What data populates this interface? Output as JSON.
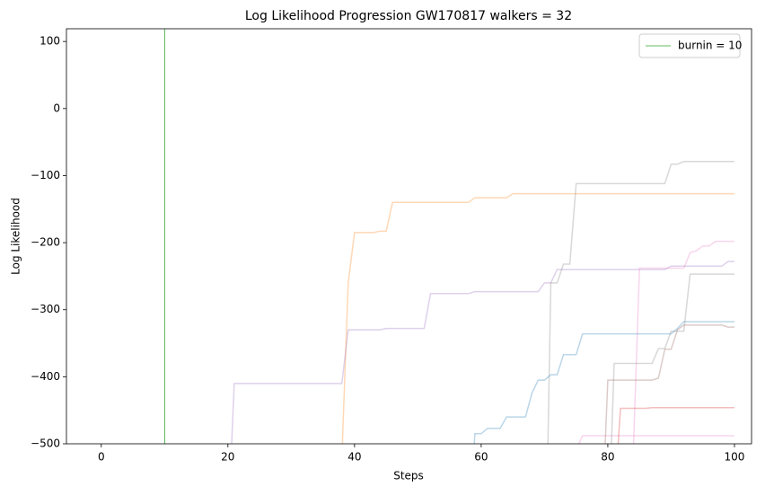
{
  "chart_data": {
    "type": "line",
    "title": "Log Likelihood Progression GW170817 walkers = 32",
    "xlabel": "Steps",
    "ylabel": "Log Likelihood",
    "xlim": [
      -5.5,
      102.7
    ],
    "ylim": [
      -500,
      119
    ],
    "xticks": [
      0,
      20,
      40,
      60,
      80,
      100
    ],
    "yticks": [
      {
        "value": -500,
        "label": "−500"
      },
      {
        "value": -400,
        "label": "−400"
      },
      {
        "value": -300,
        "label": "−300"
      },
      {
        "value": -200,
        "label": "−200"
      },
      {
        "value": -100,
        "label": "−100"
      },
      0,
      100
    ],
    "grid": false,
    "legend": "upper right",
    "alpha": 0.3,
    "vline": {
      "name": "burnin = 10",
      "x": 10,
      "color": "#2ca02c"
    },
    "series": [
      {
        "color": "#ff7f0e",
        "x": [
          38,
          39,
          40,
          43,
          44,
          45,
          46,
          58,
          59,
          64,
          65,
          100
        ],
        "values": [
          -520,
          -260,
          -185,
          -185,
          -183,
          -183,
          -140,
          -140,
          -133,
          -133,
          -127,
          -127
        ]
      },
      {
        "color": "#9467bd",
        "x": [
          20.5,
          21,
          38,
          39,
          44,
          45,
          51,
          52,
          58,
          59,
          69,
          70,
          71,
          72,
          89,
          90,
          98,
          99,
          100
        ],
        "values": [
          -520,
          -410,
          -410,
          -330,
          -330,
          -328,
          -328,
          -276,
          -276,
          -273,
          -273,
          -260,
          -260,
          -240,
          -240,
          -235,
          -235,
          -228,
          -228
        ]
      },
      {
        "color": "#7f7f7f",
        "x": [
          70.5,
          71,
          72,
          73,
          74,
          75,
          89,
          90,
          91,
          92,
          100
        ],
        "values": [
          -520,
          -260,
          -260,
          -232,
          -232,
          -112,
          -112,
          -83,
          -83,
          -79,
          -79
        ]
      },
      {
        "color": "#1f77b4",
        "x": [
          58.8,
          59,
          60,
          61,
          63,
          64,
          67,
          68,
          69,
          70,
          71,
          72,
          73,
          75,
          76,
          90,
          91,
          92,
          100
        ],
        "values": [
          -520,
          -485,
          -485,
          -477,
          -477,
          -460,
          -460,
          -425,
          -405,
          -405,
          -397,
          -397,
          -367,
          -367,
          -336,
          -336,
          -328,
          -318,
          -318
        ]
      },
      {
        "color": "#e377c2",
        "x": [
          84,
          85,
          92,
          93,
          94,
          95,
          96,
          97,
          100
        ],
        "values": [
          -520,
          -238,
          -238,
          -215,
          -212,
          -205,
          -205,
          -198,
          -198
        ]
      },
      {
        "color": "#e377c2",
        "x": [
          74.5,
          76,
          81,
          82,
          100
        ],
        "values": [
          -520,
          -488,
          -488,
          -488,
          -488
        ]
      },
      {
        "color": "#d62728",
        "x": [
          81.5,
          82,
          86,
          87,
          100
        ],
        "values": [
          -520,
          -447,
          -447,
          -446,
          -446
        ]
      },
      {
        "color": "#8c564b",
        "x": [
          79.5,
          80,
          87,
          88,
          89,
          90,
          91,
          92,
          98,
          99,
          100
        ],
        "values": [
          -520,
          -405,
          -405,
          -402,
          -359,
          -359,
          -330,
          -323,
          -323,
          -326,
          -326
        ]
      },
      {
        "color": "#7f7f7f",
        "x": [
          80.5,
          81,
          87,
          88,
          89,
          90,
          92,
          93,
          100
        ],
        "values": [
          -520,
          -380,
          -380,
          -358,
          -358,
          -332,
          -332,
          -247,
          -247
        ]
      }
    ]
  }
}
